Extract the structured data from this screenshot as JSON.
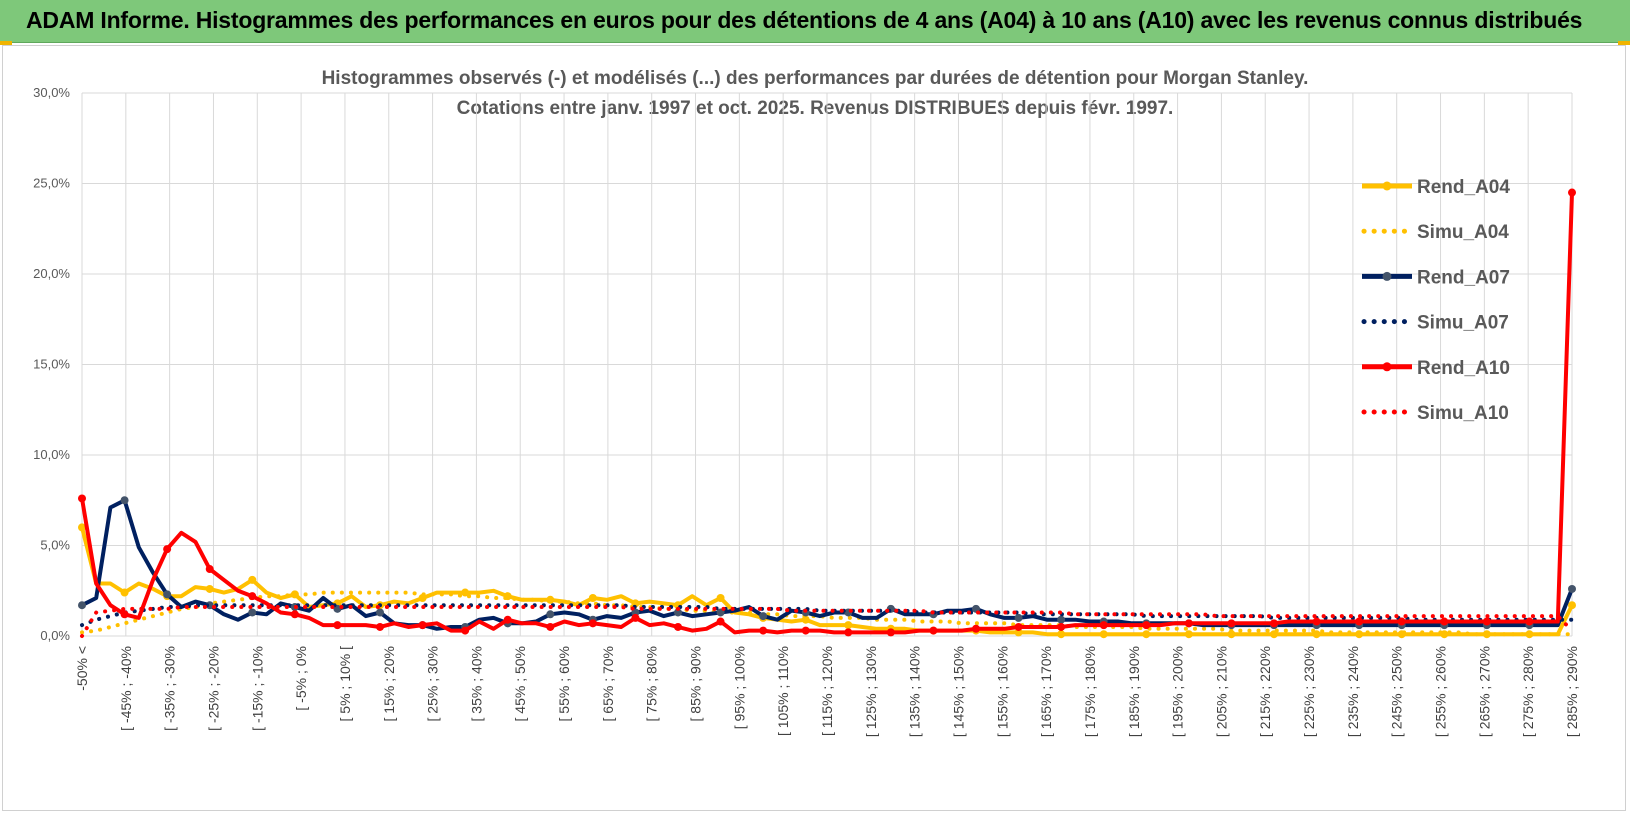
{
  "banner": {
    "title": "ADAM Informe. Histogrammes des performances en euros pour des détentions de 4 ans (A04) à 10 ans (A10) avec les revenus connus distribués"
  },
  "chart_data": {
    "type": "line",
    "title_line1": "Histogrammes observés (-) et modélisés (...) des performances par durées de détention pour Morgan Stanley.",
    "title_line2": "Cotations entre janv. 1997 et oct. 2025. Revenus DISTRIBUES depuis févr. 1997.",
    "ylim": [
      0,
      30
    ],
    "y_ticks": [
      "0,0%",
      "5,0%",
      "10,0%",
      "15,0%",
      "20,0%",
      "25,0%",
      "30,0%"
    ],
    "y_tick_values": [
      0,
      5,
      10,
      15,
      20,
      25,
      30
    ],
    "category_labels": [
      "-50% <",
      "[ -45% ; -40%",
      "[ -35% ; -30%",
      "[ -25% ; -20%",
      "[ -15% ; -10%",
      "[ -5% ; 0%",
      "[ 5% ; 10% [",
      "[ 15% ; 20%",
      "[ 25% ; 30%",
      "[ 35% ; 40%",
      "[ 45% ; 50%",
      "[ 55% ; 60%",
      "[ 65% ; 70%",
      "[ 75% ; 80%",
      "[ 85% ; 90%",
      "[ 95% ; 100%",
      "[ 105% ; 110%",
      "[ 115% ; 120%",
      "[ 125% ; 130%",
      "[ 135% ; 140%",
      "[ 145% ; 150%",
      "[ 155% ; 160%",
      "[ 165% ; 170%",
      "[ 175% ; 180%",
      "[ 185% ; 190%",
      "[ 195% ; 200%",
      "[ 205% ; 210%",
      "[ 215% ; 220%",
      "[ 225% ; 230%",
      "[ 235% ; 240%",
      "[ 245% ; 250%",
      "[ 255% ; 260%",
      "[ 265% ; 270%",
      "[ 275% ; 280%",
      "[ 285% ; 290%"
    ],
    "series": [
      {
        "name": "Rend_A04",
        "style": "solid",
        "color": "#ffc000",
        "values": [
          6.0,
          2.9,
          2.9,
          2.4,
          2.9,
          2.6,
          2.2,
          2.2,
          2.7,
          2.6,
          2.4,
          2.6,
          3.1,
          2.4,
          2.1,
          2.3,
          1.6,
          1.7,
          1.8,
          2.2,
          1.6,
          1.7,
          1.9,
          1.8,
          2.1,
          2.4,
          2.4,
          2.4,
          2.4,
          2.5,
          2.2,
          2.0,
          2.0,
          2.0,
          1.9,
          1.7,
          2.1,
          2.0,
          2.2,
          1.8,
          1.9,
          1.8,
          1.7,
          2.2,
          1.7,
          2.1,
          1.3,
          1.2,
          1.0,
          0.9,
          0.8,
          0.9,
          0.6,
          0.6,
          0.6,
          0.5,
          0.4,
          0.4,
          0.4,
          0.3,
          0.3,
          0.3,
          0.3,
          0.3,
          0.2,
          0.2,
          0.2,
          0.2,
          0.1,
          0.1,
          0.1,
          0.1,
          0.1,
          0.1,
          0.1,
          0.1,
          0.1,
          0.1,
          0.1,
          0.1,
          0.1,
          0.1,
          0.1,
          0.1,
          0.1,
          0.1,
          0.1,
          0.1,
          0.1,
          0.1,
          0.1,
          0.1,
          0.1,
          0.1,
          0.1,
          0.1,
          0.1,
          0.1,
          0.1,
          0.1,
          0.1,
          0.1,
          0.1,
          0.1,
          0.1,
          1.7
        ]
      },
      {
        "name": "Simu_A04",
        "style": "dotted",
        "color": "#ffc000",
        "values": [
          0.2,
          0.3,
          0.5,
          0.7,
          0.9,
          1.1,
          1.3,
          1.5,
          1.6,
          1.8,
          1.9,
          2.0,
          2.1,
          2.2,
          2.2,
          2.3,
          2.3,
          2.4,
          2.4,
          2.4,
          2.4,
          2.4,
          2.4,
          2.4,
          2.3,
          2.3,
          2.3,
          2.2,
          2.2,
          2.1,
          2.1,
          2.0,
          2.0,
          1.9,
          1.9,
          1.8,
          1.8,
          1.7,
          1.7,
          1.6,
          1.6,
          1.5,
          1.5,
          1.4,
          1.4,
          1.3,
          1.3,
          1.3,
          1.2,
          1.2,
          1.1,
          1.1,
          1.1,
          1.0,
          1.0,
          1.0,
          0.9,
          0.9,
          0.9,
          0.8,
          0.8,
          0.8,
          0.7,
          0.7,
          0.7,
          0.7,
          0.6,
          0.6,
          0.6,
          0.6,
          0.5,
          0.5,
          0.5,
          0.5,
          0.5,
          0.4,
          0.4,
          0.4,
          0.4,
          0.4,
          0.4,
          0.3,
          0.3,
          0.3,
          0.3,
          0.3,
          0.3,
          0.3,
          0.2,
          0.2,
          0.2,
          0.2,
          0.2,
          0.2,
          0.2,
          0.2,
          0.2,
          0.2,
          0.1,
          0.1,
          0.1,
          0.1,
          0.1,
          0.1,
          0.1,
          0.1
        ]
      },
      {
        "name": "Rend_A07",
        "style": "solid",
        "color": "#002060",
        "values": [
          1.7,
          2.1,
          7.1,
          7.5,
          4.9,
          3.5,
          2.3,
          1.6,
          1.9,
          1.7,
          1.2,
          0.9,
          1.3,
          1.2,
          1.8,
          1.6,
          1.4,
          2.1,
          1.5,
          1.7,
          1.1,
          1.3,
          0.7,
          0.6,
          0.6,
          0.4,
          0.5,
          0.5,
          0.9,
          1.0,
          0.7,
          0.7,
          0.8,
          1.2,
          1.3,
          1.2,
          0.9,
          1.1,
          1.0,
          1.3,
          1.4,
          1.1,
          1.3,
          1.1,
          1.2,
          1.3,
          1.4,
          1.6,
          1.1,
          0.9,
          1.4,
          1.3,
          1.1,
          1.3,
          1.3,
          1.0,
          1.0,
          1.5,
          1.2,
          1.2,
          1.2,
          1.4,
          1.4,
          1.5,
          1.2,
          1.0,
          1.0,
          1.1,
          0.9,
          0.9,
          0.9,
          0.8,
          0.8,
          0.8,
          0.7,
          0.7,
          0.7,
          0.7,
          0.7,
          0.6,
          0.6,
          0.6,
          0.6,
          0.6,
          0.6,
          0.6,
          0.6,
          0.6,
          0.6,
          0.6,
          0.6,
          0.6,
          0.6,
          0.6,
          0.6,
          0.6,
          0.6,
          0.6,
          0.6,
          0.6,
          0.6,
          0.6,
          0.6,
          0.6,
          0.6,
          2.6
        ]
      },
      {
        "name": "Simu_A07",
        "style": "dotted",
        "color": "#002060",
        "values": [
          0.6,
          0.9,
          1.1,
          1.3,
          1.4,
          1.5,
          1.6,
          1.6,
          1.7,
          1.7,
          1.7,
          1.7,
          1.7,
          1.7,
          1.7,
          1.7,
          1.7,
          1.7,
          1.7,
          1.7,
          1.7,
          1.7,
          1.7,
          1.7,
          1.7,
          1.7,
          1.7,
          1.7,
          1.7,
          1.7,
          1.7,
          1.7,
          1.7,
          1.7,
          1.7,
          1.7,
          1.7,
          1.7,
          1.7,
          1.6,
          1.6,
          1.6,
          1.6,
          1.6,
          1.6,
          1.5,
          1.5,
          1.5,
          1.5,
          1.5,
          1.5,
          1.5,
          1.4,
          1.4,
          1.4,
          1.4,
          1.4,
          1.4,
          1.4,
          1.3,
          1.3,
          1.3,
          1.3,
          1.3,
          1.3,
          1.3,
          1.3,
          1.2,
          1.2,
          1.2,
          1.2,
          1.2,
          1.2,
          1.2,
          1.2,
          1.1,
          1.1,
          1.1,
          1.1,
          1.1,
          1.1,
          1.1,
          1.1,
          1.1,
          1.0,
          1.0,
          1.0,
          1.0,
          1.0,
          1.0,
          1.0,
          1.0,
          1.0,
          1.0,
          0.9,
          0.9,
          0.9,
          0.9,
          0.9,
          0.9,
          0.9,
          0.9,
          0.9,
          0.9,
          0.9,
          0.9
        ]
      },
      {
        "name": "Rend_A10",
        "style": "solid",
        "color": "#ff0000",
        "values": [
          7.6,
          2.9,
          1.7,
          1.2,
          1.0,
          3.1,
          4.8,
          5.7,
          5.2,
          3.7,
          3.1,
          2.5,
          2.2,
          1.8,
          1.3,
          1.2,
          1.0,
          0.6,
          0.6,
          0.6,
          0.6,
          0.5,
          0.7,
          0.5,
          0.6,
          0.7,
          0.3,
          0.3,
          0.8,
          0.4,
          0.9,
          0.7,
          0.7,
          0.5,
          0.8,
          0.6,
          0.7,
          0.6,
          0.5,
          1.0,
          0.6,
          0.7,
          0.5,
          0.3,
          0.4,
          0.8,
          0.2,
          0.3,
          0.3,
          0.2,
          0.3,
          0.3,
          0.3,
          0.2,
          0.2,
          0.2,
          0.2,
          0.2,
          0.2,
          0.3,
          0.3,
          0.3,
          0.3,
          0.4,
          0.4,
          0.4,
          0.5,
          0.5,
          0.5,
          0.5,
          0.6,
          0.6,
          0.6,
          0.6,
          0.6,
          0.6,
          0.6,
          0.7,
          0.7,
          0.7,
          0.7,
          0.7,
          0.7,
          0.7,
          0.7,
          0.8,
          0.8,
          0.8,
          0.8,
          0.8,
          0.8,
          0.8,
          0.8,
          0.8,
          0.8,
          0.8,
          0.8,
          0.8,
          0.8,
          0.8,
          0.8,
          0.8,
          0.8,
          0.8,
          0.8,
          24.5
        ]
      },
      {
        "name": "Simu_A10",
        "style": "dotted",
        "color": "#ff0000",
        "values": [
          0.0,
          1.3,
          1.4,
          1.5,
          1.5,
          1.5,
          1.5,
          1.6,
          1.6,
          1.6,
          1.6,
          1.6,
          1.6,
          1.6,
          1.6,
          1.6,
          1.6,
          1.6,
          1.6,
          1.6,
          1.6,
          1.6,
          1.6,
          1.6,
          1.6,
          1.6,
          1.6,
          1.6,
          1.6,
          1.6,
          1.6,
          1.6,
          1.6,
          1.6,
          1.6,
          1.6,
          1.6,
          1.6,
          1.6,
          1.5,
          1.5,
          1.5,
          1.5,
          1.5,
          1.5,
          1.5,
          1.5,
          1.5,
          1.5,
          1.5,
          1.4,
          1.4,
          1.4,
          1.4,
          1.4,
          1.4,
          1.4,
          1.4,
          1.4,
          1.4,
          1.3,
          1.3,
          1.3,
          1.3,
          1.3,
          1.3,
          1.3,
          1.3,
          1.3,
          1.3,
          1.2,
          1.2,
          1.2,
          1.2,
          1.2,
          1.2,
          1.2,
          1.2,
          1.2,
          1.2,
          1.1,
          1.1,
          1.1,
          1.1,
          1.1,
          1.1,
          1.1,
          1.1,
          1.1,
          1.1,
          1.1,
          1.1,
          1.1,
          1.1,
          1.1,
          1.1,
          1.1,
          1.1,
          1.1,
          1.1,
          1.1,
          1.1,
          1.1,
          1.1,
          1.1,
          0.3
        ]
      }
    ],
    "legend": [
      "Rend_A04",
      "Simu_A04",
      "Rend_A07",
      "Simu_A07",
      "Rend_A10",
      "Simu_A10"
    ],
    "legend_position": "right",
    "grid": "horizontal and vertical",
    "xlabel": "",
    "ylabel": ""
  }
}
